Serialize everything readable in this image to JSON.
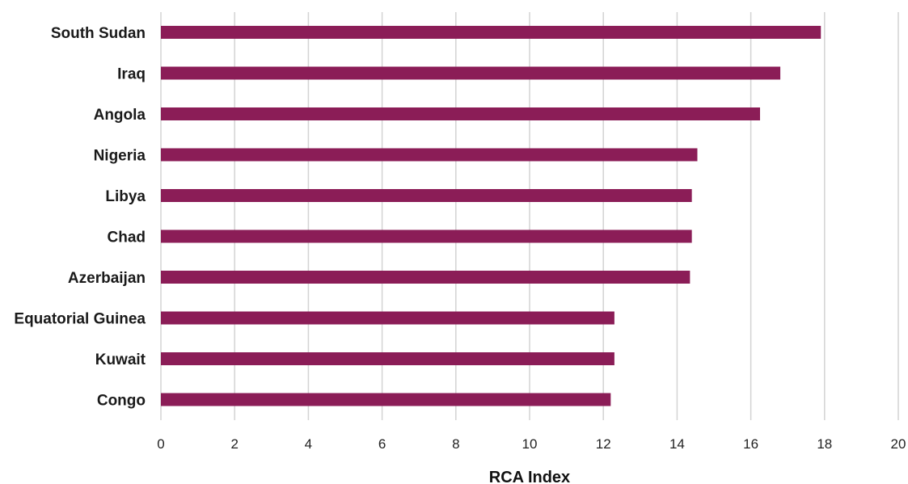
{
  "chart_data": {
    "type": "bar",
    "orientation": "horizontal",
    "categories": [
      "South Sudan",
      "Iraq",
      "Angola",
      "Nigeria",
      "Libya",
      "Chad",
      "Azerbaijan",
      "Equatorial Guinea",
      "Kuwait",
      "Congo"
    ],
    "values": [
      17.9,
      16.8,
      16.25,
      14.55,
      14.4,
      14.4,
      14.35,
      12.3,
      12.3,
      12.2
    ],
    "xlabel": "RCA Index",
    "ylabel": "",
    "xlim": [
      0,
      20
    ],
    "xticks": [
      "0",
      "2",
      "4",
      "6",
      "8",
      "10",
      "12",
      "14",
      "16",
      "18",
      "20"
    ],
    "grid": "vertical",
    "legend": "none",
    "bar_color": "#8b1d57",
    "gridline_color": "#d3d3d3"
  }
}
